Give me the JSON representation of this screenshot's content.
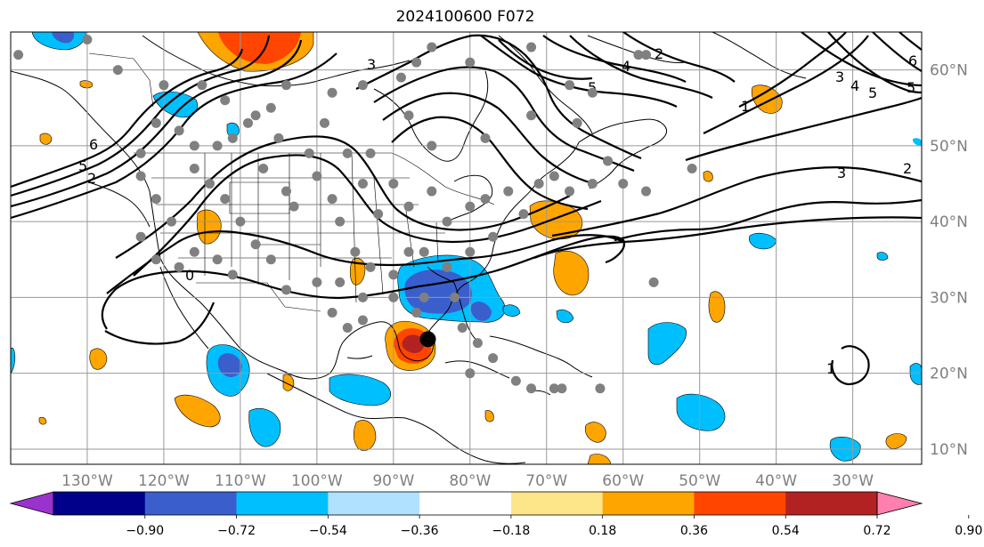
{
  "title": "2024100600 F072",
  "map": {
    "lon_range": [
      -140,
      -21
    ],
    "lat_range": [
      8,
      65
    ],
    "meridians": [
      -130,
      -120,
      -110,
      -100,
      -90,
      -80,
      -70,
      -60,
      -50,
      -40,
      -30
    ],
    "parallels": [
      10,
      20,
      30,
      40,
      50,
      60
    ],
    "lon_labels": [
      "130°W",
      "120°W",
      "110°W",
      "100°W",
      "90°W",
      "80°W",
      "70°W",
      "60°W",
      "50°W",
      "40°W",
      "30°W"
    ],
    "lat_labels": [
      "10°N",
      "20°N",
      "30°N",
      "40°N",
      "50°N",
      "60°N"
    ],
    "grid": true,
    "storm_marker": {
      "lon": -85.5,
      "lat": 24.5,
      "color": "#000000"
    },
    "station_color": "#808080",
    "contour_labels": [
      "1",
      "2",
      "3",
      "4",
      "5",
      "6"
    ]
  },
  "colorbar": {
    "levels": [
      "−0.90",
      "−0.72",
      "−0.54",
      "−0.36",
      "−0.18",
      "0.18",
      "0.36",
      "0.54",
      "0.72",
      "0.90"
    ],
    "colors": [
      "#9a32cd",
      "#00008b",
      "#3a5fcd",
      "#00bfff",
      "#b0e2ff",
      "#ffffff",
      "#fde68a",
      "#ffa500",
      "#ff4500",
      "#b22222",
      "#ff7faf"
    ]
  }
}
